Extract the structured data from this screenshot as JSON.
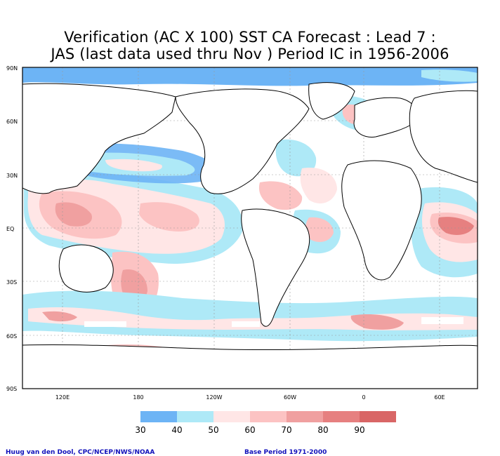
{
  "title": {
    "line1": "Verification (AC X 100) SST CA Forecast : Lead 7 :",
    "line2": "JAS (last data used thru Nov ) Period IC in 1956-2006"
  },
  "lat_labels": [
    "90N",
    "60N",
    "30N",
    "EQ",
    "30S",
    "60S",
    "90S"
  ],
  "lon_labels": [
    "120E",
    "180",
    "120W",
    "60W",
    "0",
    "60E"
  ],
  "colorbar": {
    "ticks": [
      "30",
      "40",
      "50",
      "60",
      "70",
      "80",
      "90"
    ],
    "colors": [
      "#6db4f5",
      "#aee9f7",
      "#ffe6e6",
      "#fcc3c3",
      "#f0a0a0",
      "#e68080",
      "#d96666"
    ]
  },
  "footer": {
    "credit": "Huug van den Dool, CPC/NCEP/NWS/NOAA",
    "base_period": "Base Period 1971-2000"
  }
}
